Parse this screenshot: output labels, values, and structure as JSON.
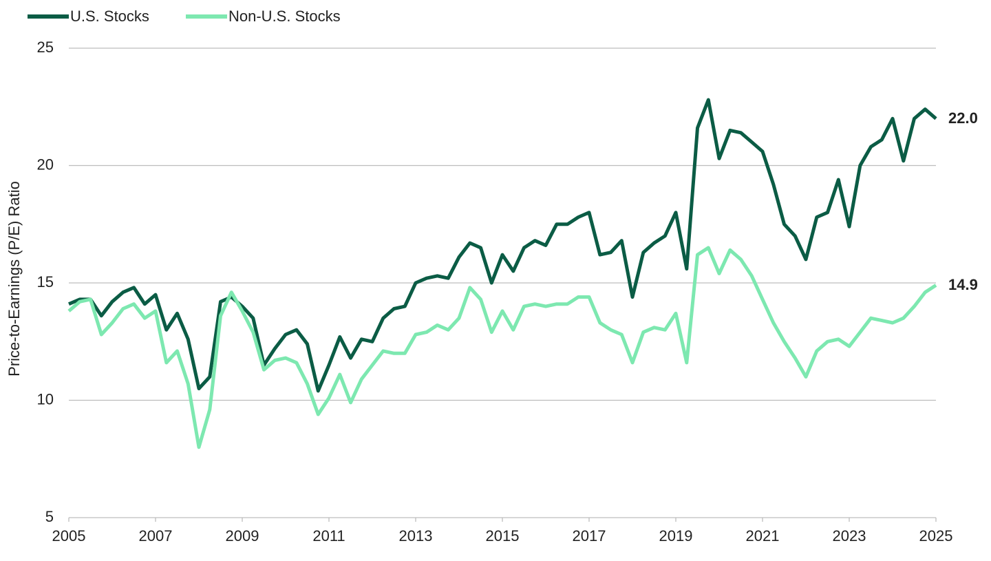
{
  "chart_data": {
    "type": "line",
    "y_label": "Price-to-Earnings (P/E) Ratio",
    "x": [
      2005,
      2005.25,
      2005.5,
      2005.75,
      2006,
      2006.25,
      2006.5,
      2006.75,
      2007,
      2007.25,
      2007.5,
      2007.75,
      2008,
      2008.25,
      2008.5,
      2008.75,
      2009,
      2009.25,
      2009.5,
      2009.75,
      2010,
      2010.25,
      2010.5,
      2010.75,
      2011,
      2011.25,
      2011.5,
      2011.75,
      2012,
      2012.25,
      2012.5,
      2012.75,
      2013,
      2013.25,
      2013.5,
      2013.75,
      2014,
      2014.25,
      2014.5,
      2014.75,
      2015,
      2015.25,
      2015.5,
      2015.75,
      2016,
      2016.25,
      2016.5,
      2016.75,
      2017,
      2017.25,
      2017.5,
      2017.75,
      2018,
      2018.25,
      2018.5,
      2018.75,
      2019,
      2019.25,
      2019.5,
      2019.75,
      2020,
      2020.25,
      2020.5,
      2020.75,
      2021,
      2021.25,
      2021.5,
      2021.75,
      2022,
      2022.25,
      2022.5,
      2022.75,
      2023,
      2023.25,
      2023.5,
      2023.75,
      2024,
      2024.25,
      2024.5,
      2024.75,
      2025
    ],
    "series": [
      {
        "name": "U.S. Stocks",
        "color": "#0b5c45",
        "values": [
          14.1,
          14.3,
          14.3,
          13.6,
          14.2,
          14.6,
          14.8,
          14.1,
          14.5,
          13.0,
          13.7,
          12.6,
          10.5,
          11.0,
          14.2,
          14.4,
          14.0,
          13.5,
          11.5,
          12.2,
          12.8,
          13.0,
          12.4,
          10.4,
          11.5,
          12.7,
          11.8,
          12.6,
          12.5,
          13.5,
          13.9,
          14.0,
          15.0,
          15.2,
          15.3,
          15.2,
          16.1,
          16.7,
          16.5,
          15.0,
          16.2,
          15.5,
          16.5,
          16.8,
          16.6,
          17.5,
          17.5,
          17.8,
          18.0,
          16.2,
          16.3,
          16.8,
          14.4,
          16.3,
          16.7,
          17.0,
          18.0,
          15.6,
          21.6,
          22.8,
          20.3,
          21.5,
          21.4,
          21.0,
          20.6,
          19.2,
          17.5,
          17.0,
          16.0,
          17.8,
          18.0,
          19.4,
          17.4,
          20.0,
          20.8,
          21.1,
          22.0,
          20.2,
          22.0,
          22.4,
          22.0
        ],
        "value_labels": [
          null,
          null,
          null,
          null,
          null,
          null,
          null,
          null,
          null,
          null,
          null,
          null,
          null,
          null,
          null,
          null,
          null,
          null,
          null,
          null,
          null,
          null,
          null,
          null,
          null,
          null,
          null,
          null,
          null,
          null,
          null,
          null,
          null,
          null,
          null,
          null,
          null,
          null,
          null,
          null,
          null,
          null,
          null,
          null,
          null,
          null,
          null,
          null,
          null,
          null,
          null,
          null,
          null,
          null,
          null,
          null,
          null,
          null,
          null,
          null,
          null,
          null,
          null,
          null,
          null,
          null,
          null,
          null,
          null,
          null,
          null,
          null,
          null,
          null,
          null,
          null,
          null,
          null,
          null,
          null,
          "22.0"
        ]
      },
      {
        "name": "Non-U.S. Stocks",
        "color": "#7de8b0",
        "values": [
          13.8,
          14.2,
          14.3,
          12.8,
          13.3,
          13.9,
          14.1,
          13.5,
          13.8,
          11.6,
          12.1,
          10.7,
          8.0,
          9.6,
          13.6,
          14.6,
          13.8,
          12.9,
          11.3,
          11.7,
          11.8,
          11.6,
          10.7,
          9.4,
          10.1,
          11.1,
          9.9,
          10.9,
          11.5,
          12.1,
          12.0,
          12.0,
          12.8,
          12.9,
          13.2,
          13.0,
          13.5,
          14.8,
          14.3,
          12.9,
          13.8,
          13.0,
          14.0,
          14.1,
          14.0,
          14.1,
          14.1,
          14.4,
          14.4,
          13.3,
          13.0,
          12.8,
          11.6,
          12.9,
          13.1,
          13.0,
          13.7,
          11.6,
          16.2,
          16.5,
          15.4,
          16.4,
          16.0,
          15.3,
          14.3,
          13.3,
          12.5,
          11.8,
          11.0,
          12.1,
          12.5,
          12.6,
          12.3,
          12.9,
          13.5,
          13.4,
          13.3,
          13.5,
          14.0,
          14.6,
          14.9
        ],
        "value_labels": [
          null,
          null,
          null,
          null,
          null,
          null,
          null,
          null,
          null,
          null,
          null,
          null,
          null,
          null,
          null,
          null,
          null,
          null,
          null,
          null,
          null,
          null,
          null,
          null,
          null,
          null,
          null,
          null,
          null,
          null,
          null,
          null,
          null,
          null,
          null,
          null,
          null,
          null,
          null,
          null,
          null,
          null,
          null,
          null,
          null,
          null,
          null,
          null,
          null,
          null,
          null,
          null,
          null,
          null,
          null,
          null,
          null,
          null,
          null,
          null,
          null,
          null,
          null,
          null,
          null,
          null,
          null,
          null,
          null,
          null,
          null,
          null,
          null,
          null,
          null,
          null,
          null,
          null,
          null,
          null,
          "14.9"
        ]
      }
    ],
    "xlim": [
      2005,
      2025
    ],
    "xticks": [
      2005,
      2007,
      2009,
      2011,
      2013,
      2015,
      2017,
      2019,
      2021,
      2023,
      2025
    ],
    "ylim": [
      5,
      25
    ],
    "yticks": [
      5,
      10,
      15,
      20,
      25
    ],
    "grid": true,
    "legend": "top-left"
  }
}
